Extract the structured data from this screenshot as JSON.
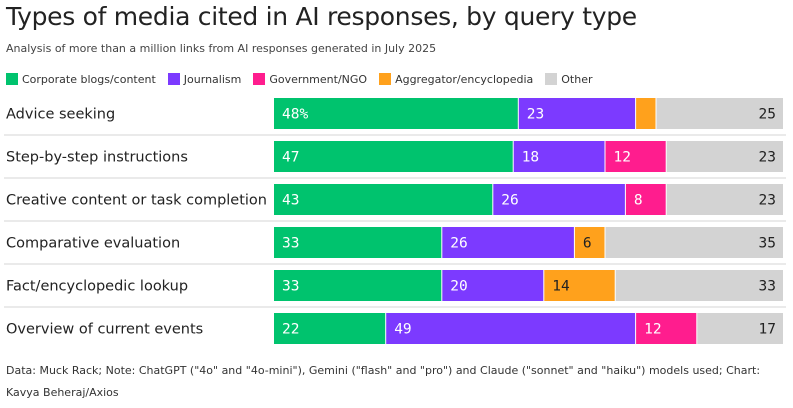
{
  "title": "Types of media cited in AI responses, by query type",
  "subtitle": "Analysis of more than a million links from AI responses generated in July 2025",
  "legend": [
    {
      "label": "Corporate blogs/content",
      "color": "#00c36e"
    },
    {
      "label": "Journalism",
      "color": "#7c3aff"
    },
    {
      "label": "Government/NGO",
      "color": "#ff1d8e"
    },
    {
      "label": "Aggregator/encyclopedia",
      "color": "#ffa11c"
    },
    {
      "label": "Other",
      "color": "#d3d3d3"
    }
  ],
  "footer": "Data: Muck Rack; Note: ChatGPT (\"4o\" and \"4o-mini\"), Gemini (\"flash\" and \"pro\") and Claude (\"sonnet\" and \"haiku\") models used; Chart: Kavya Beheraj/Axios",
  "chart_data": {
    "type": "bar",
    "orientation": "horizontal",
    "stacked": true,
    "percent": true,
    "categories": [
      "Advice seeking",
      "Step-by-step instructions",
      "Creative content or task completion",
      "Comparative evaluation",
      "Fact/encyclopedic lookup",
      "Overview of current events"
    ],
    "series": [
      {
        "name": "Corporate blogs/content",
        "color": "#00c36e",
        "values": [
          48,
          47,
          43,
          33,
          33,
          22
        ]
      },
      {
        "name": "Journalism",
        "color": "#7c3aff",
        "values": [
          23,
          18,
          26,
          26,
          20,
          49
        ]
      },
      {
        "name": "Government/NGO",
        "color": "#ff1d8e",
        "values": [
          0,
          12,
          8,
          0,
          0,
          12
        ]
      },
      {
        "name": "Aggregator/encyclopedia",
        "color": "#ffa11c",
        "values": [
          4,
          0,
          0,
          6,
          14,
          0
        ]
      },
      {
        "name": "Other",
        "color": "#d3d3d3",
        "values": [
          25,
          23,
          23,
          35,
          33,
          17
        ]
      }
    ],
    "data_labels": [
      [
        "48%",
        "23",
        "",
        "",
        "25"
      ],
      [
        "47",
        "18",
        "12",
        "",
        "23"
      ],
      [
        "43",
        "26",
        "8",
        "",
        "23"
      ],
      [
        "33",
        "26",
        "",
        "6",
        "35"
      ],
      [
        "33",
        "20",
        "",
        "14",
        "33"
      ],
      [
        "22",
        "49",
        "12",
        "",
        "17"
      ]
    ],
    "legend_position": "top",
    "grid": false
  }
}
